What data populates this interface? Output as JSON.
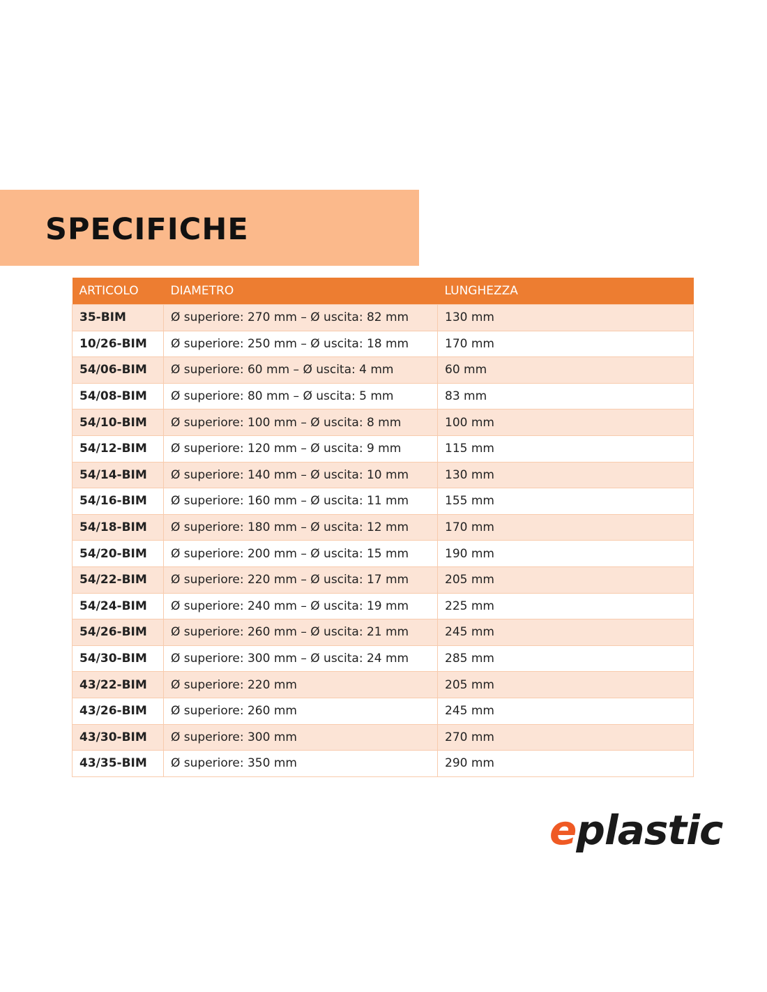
{
  "title": "SPECIFICHE",
  "table": {
    "headers": [
      "ARTICOLO",
      "DIAMETRO",
      "LUNGHEZZA"
    ],
    "rows": [
      [
        "35-BIM",
        "Ø superiore: 270 mm – Ø uscita: 82 mm",
        "130 mm"
      ],
      [
        "10/26-BIM",
        "Ø superiore: 250 mm – Ø uscita: 18 mm",
        "170 mm"
      ],
      [
        "54/06-BIM",
        "Ø superiore: 60 mm – Ø uscita: 4 mm",
        "60 mm"
      ],
      [
        "54/08-BIM",
        "Ø superiore: 80 mm – Ø uscita: 5 mm",
        "83 mm"
      ],
      [
        "54/10-BIM",
        "Ø superiore: 100 mm – Ø uscita: 8 mm",
        "100 mm"
      ],
      [
        "54/12-BIM",
        "Ø superiore: 120 mm – Ø uscita: 9 mm",
        "115 mm"
      ],
      [
        "54/14-BIM",
        "Ø superiore: 140 mm – Ø uscita: 10 mm",
        "130 mm"
      ],
      [
        "54/16-BIM",
        "Ø superiore: 160 mm – Ø uscita: 11 mm",
        "155 mm"
      ],
      [
        "54/18-BIM",
        "Ø superiore: 180 mm – Ø uscita: 12 mm",
        "170 mm"
      ],
      [
        "54/20-BIM",
        "Ø superiore: 200 mm – Ø uscita: 15 mm",
        "190 mm"
      ],
      [
        "54/22-BIM",
        "Ø superiore: 220 mm – Ø uscita: 17 mm",
        "205 mm"
      ],
      [
        "54/24-BIM",
        "Ø superiore: 240 mm – Ø uscita: 19 mm",
        "225 mm"
      ],
      [
        "54/26-BIM",
        "Ø superiore: 260 mm – Ø uscita: 21 mm",
        "245 mm"
      ],
      [
        "54/30-BIM",
        "Ø superiore: 300 mm – Ø uscita: 24 mm",
        "285 mm"
      ],
      [
        "43/22-BIM",
        "Ø superiore: 220 mm",
        "205 mm"
      ],
      [
        "43/26-BIM",
        "Ø superiore: 260 mm",
        "245 mm"
      ],
      [
        "43/30-BIM",
        "Ø superiore: 300 mm",
        "270 mm"
      ],
      [
        "43/35-BIM",
        "Ø superiore: 350 mm",
        "290 mm"
      ]
    ]
  },
  "logo": {
    "text": "eplastic",
    "accent": "#ef5a24"
  },
  "colors": {
    "banner": "#fbb98b",
    "header": "#ed7d31",
    "row_alt": "#fce4d6"
  }
}
